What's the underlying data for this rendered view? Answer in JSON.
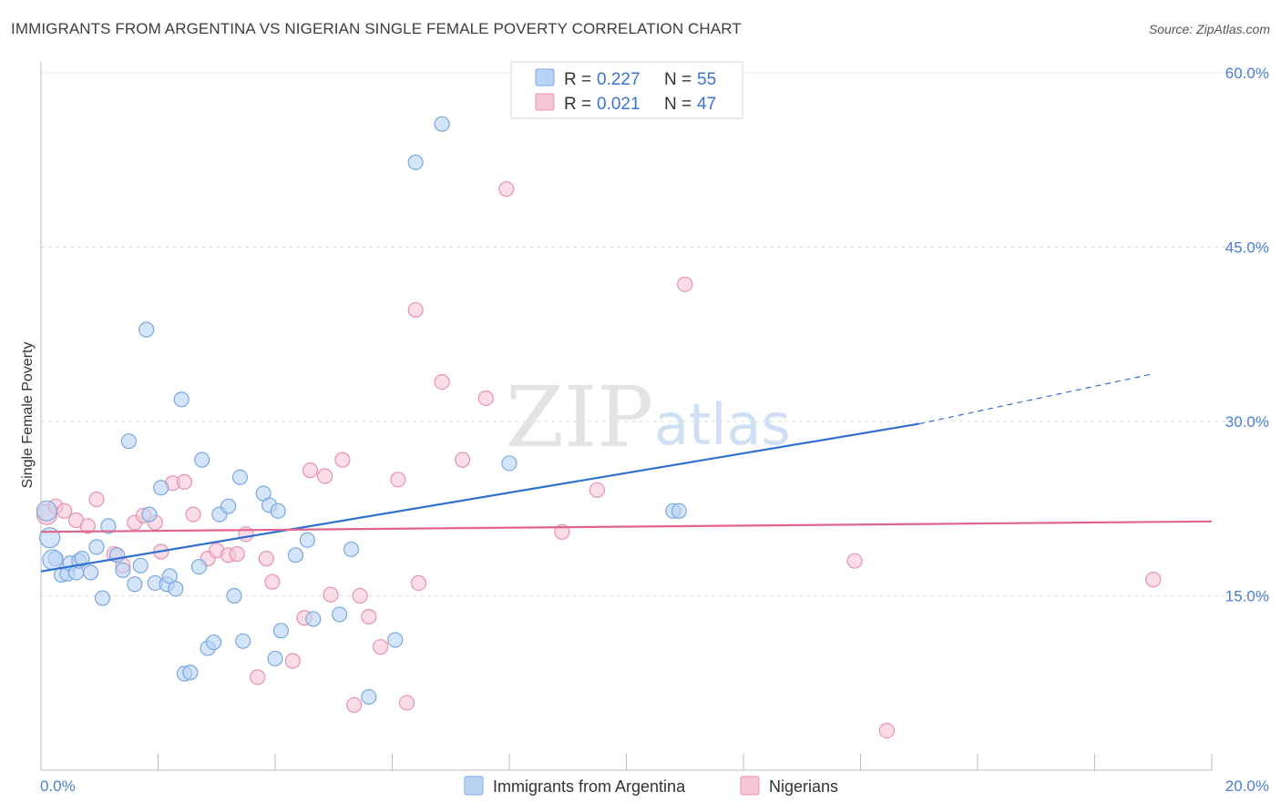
{
  "header": {
    "title": "IMMIGRANTS FROM ARGENTINA VS NIGERIAN SINGLE FEMALE POVERTY CORRELATION CHART",
    "source": "Source: ZipAtlas.com"
  },
  "colors": {
    "blue_fill": "#b9d3f5",
    "blue_stroke": "#7aa7e0",
    "blue_line": "#2f6fd0",
    "pink_fill": "#f7c6d6",
    "pink_stroke": "#e891ad",
    "pink_line": "#e0648f",
    "axis_text": "#4a7fd1",
    "grid": "#dddddd"
  },
  "legend_top": {
    "rows": [
      {
        "r_label": "R = ",
        "r_value": "0.227",
        "n_label": "N = ",
        "n_value": "55",
        "color": "blue"
      },
      {
        "r_label": "R = ",
        "r_value": "0.021",
        "n_label": "N = ",
        "n_value": "47",
        "color": "pink"
      }
    ]
  },
  "legend_bottom": {
    "items": [
      {
        "label": "Immigrants from Argentina",
        "color": "blue"
      },
      {
        "label": "Nigerians",
        "color": "pink"
      }
    ]
  },
  "watermark": {
    "zip": "ZIP",
    "atlas": "atlas"
  },
  "chart_data": {
    "type": "scatter",
    "title": "IMMIGRANTS FROM ARGENTINA VS NIGERIAN SINGLE FEMALE POVERTY CORRELATION CHART",
    "xlabel": "",
    "ylabel": "Single Female Poverty",
    "xlim": [
      0,
      20
    ],
    "ylim": [
      0,
      60
    ],
    "x_tick_labels": [
      "0.0%",
      "20.0%"
    ],
    "y_ticks": [
      15,
      30,
      45,
      60
    ],
    "y_tick_labels": [
      "15.0%",
      "30.0%",
      "45.0%",
      "60.0%"
    ],
    "grid": "horizontal dashed",
    "legend_position": "top-center",
    "series": [
      {
        "name": "Immigrants from Argentina",
        "color": "#7aa7e0",
        "points": [
          [
            0.15,
            20.0
          ],
          [
            0.25,
            18.2
          ],
          [
            0.35,
            16.8
          ],
          [
            0.45,
            16.9
          ],
          [
            0.5,
            17.8
          ],
          [
            0.6,
            17.0
          ],
          [
            0.65,
            18.0
          ],
          [
            0.7,
            18.2
          ],
          [
            0.85,
            17.0
          ],
          [
            0.95,
            19.2
          ],
          [
            1.05,
            14.8
          ],
          [
            1.15,
            21.0
          ],
          [
            1.3,
            18.5
          ],
          [
            1.4,
            17.2
          ],
          [
            1.5,
            28.3
          ],
          [
            1.6,
            16.0
          ],
          [
            1.7,
            17.6
          ],
          [
            1.8,
            37.9
          ],
          [
            1.85,
            22.0
          ],
          [
            1.95,
            16.1
          ],
          [
            2.05,
            24.3
          ],
          [
            2.15,
            16.0
          ],
          [
            2.2,
            16.7
          ],
          [
            2.3,
            15.6
          ],
          [
            2.4,
            31.9
          ],
          [
            2.45,
            8.3
          ],
          [
            2.55,
            8.4
          ],
          [
            2.7,
            17.5
          ],
          [
            2.75,
            26.7
          ],
          [
            2.85,
            10.5
          ],
          [
            2.95,
            11.0
          ],
          [
            3.05,
            22.0
          ],
          [
            3.2,
            22.7
          ],
          [
            3.3,
            15.0
          ],
          [
            3.4,
            25.2
          ],
          [
            3.45,
            11.1
          ],
          [
            3.8,
            23.8
          ],
          [
            3.9,
            22.8
          ],
          [
            4.0,
            9.6
          ],
          [
            4.05,
            22.3
          ],
          [
            4.1,
            12.0
          ],
          [
            4.35,
            18.5
          ],
          [
            4.55,
            19.8
          ],
          [
            4.65,
            13.0
          ],
          [
            5.1,
            13.4
          ],
          [
            5.3,
            19.0
          ],
          [
            5.6,
            6.3
          ],
          [
            6.05,
            11.2
          ],
          [
            6.4,
            52.3
          ],
          [
            6.85,
            55.6
          ],
          [
            8.0,
            26.4
          ],
          [
            10.8,
            22.3
          ],
          [
            10.9,
            22.3
          ],
          [
            0.1,
            22.3
          ],
          [
            0.2,
            18.1
          ]
        ]
      },
      {
        "name": "Nigerians",
        "color": "#e891ad",
        "points": [
          [
            0.1,
            22.0
          ],
          [
            0.25,
            22.7
          ],
          [
            0.4,
            22.3
          ],
          [
            0.6,
            21.5
          ],
          [
            0.8,
            21.0
          ],
          [
            0.95,
            23.3
          ],
          [
            1.25,
            18.6
          ],
          [
            1.4,
            17.6
          ],
          [
            1.6,
            21.3
          ],
          [
            1.75,
            21.9
          ],
          [
            1.95,
            21.3
          ],
          [
            2.05,
            18.8
          ],
          [
            2.25,
            24.7
          ],
          [
            2.45,
            24.8
          ],
          [
            2.6,
            22.0
          ],
          [
            2.85,
            18.2
          ],
          [
            3.0,
            18.9
          ],
          [
            3.2,
            18.5
          ],
          [
            3.35,
            18.6
          ],
          [
            3.5,
            20.3
          ],
          [
            3.7,
            8.0
          ],
          [
            3.85,
            18.2
          ],
          [
            3.95,
            16.2
          ],
          [
            4.3,
            9.4
          ],
          [
            4.5,
            13.1
          ],
          [
            4.6,
            25.8
          ],
          [
            4.85,
            25.3
          ],
          [
            4.95,
            15.1
          ],
          [
            5.15,
            26.7
          ],
          [
            5.35,
            5.6
          ],
          [
            5.45,
            15.0
          ],
          [
            5.6,
            13.2
          ],
          [
            5.8,
            10.6
          ],
          [
            6.1,
            25.0
          ],
          [
            6.25,
            5.8
          ],
          [
            6.4,
            39.6
          ],
          [
            6.45,
            16.1
          ],
          [
            6.85,
            33.4
          ],
          [
            7.2,
            26.7
          ],
          [
            7.6,
            32.0
          ],
          [
            7.95,
            50.0
          ],
          [
            8.9,
            20.5
          ],
          [
            9.5,
            24.1
          ],
          [
            11.0,
            41.8
          ],
          [
            13.9,
            18.0
          ],
          [
            14.45,
            3.4
          ],
          [
            19.0,
            16.4
          ]
        ]
      }
    ],
    "trend_lines": [
      {
        "series": "Immigrants from Argentina",
        "x1": 0,
        "y1": 17.1,
        "x2": 15.0,
        "y2": 29.8,
        "dashed_to_x": 19.0,
        "dashed_to_y": 34.1
      },
      {
        "series": "Nigerians",
        "x1": 0,
        "y1": 20.5,
        "x2": 20.0,
        "y2": 21.4
      }
    ]
  }
}
